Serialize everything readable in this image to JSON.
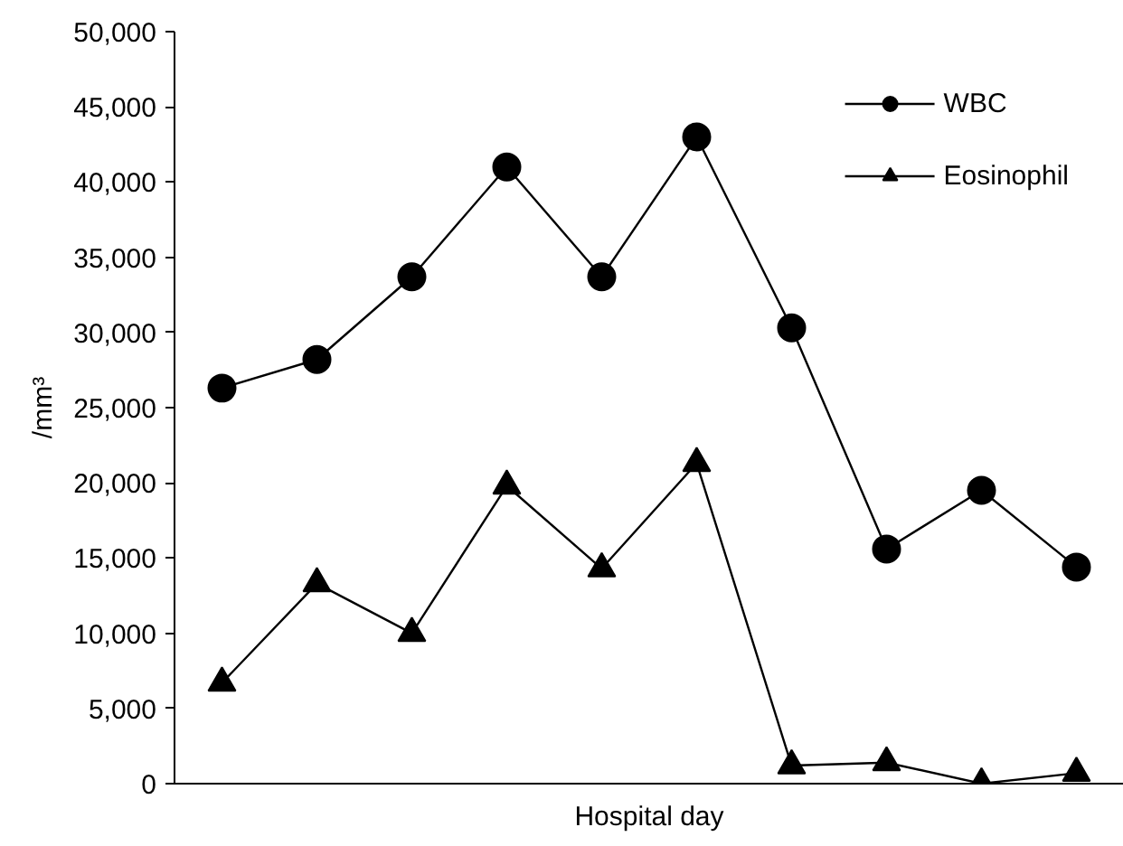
{
  "chart_data": {
    "type": "line",
    "xlabel": "Hospital day",
    "ylabel": "/mm³",
    "categories": [
      null,
      null,
      null,
      null,
      null,
      null,
      null,
      null,
      null,
      null
    ],
    "series": [
      {
        "name": "WBC",
        "color": "#000000",
        "marker": "circle",
        "values": [
          26300,
          28200,
          33700,
          41000,
          33700,
          43000,
          30300,
          15600,
          19500,
          14400
        ]
      },
      {
        "name": "Eosinophil",
        "color": "#000000",
        "marker": "triangle",
        "values": [
          6700,
          13300,
          10000,
          19800,
          14300,
          21300,
          1200,
          1400,
          0,
          700
        ]
      }
    ],
    "ylim": [
      0,
      50000
    ],
    "yticks": [
      {
        "value": 0,
        "label": "0"
      },
      {
        "value": 5000,
        "label": "5,000"
      },
      {
        "value": 10000,
        "label": "10,000"
      },
      {
        "value": 15000,
        "label": "15,000"
      },
      {
        "value": 20000,
        "label": "20,000"
      },
      {
        "value": 25000,
        "label": "25,000"
      },
      {
        "value": 30000,
        "label": "30,000"
      },
      {
        "value": 35000,
        "label": "35,000"
      },
      {
        "value": 40000,
        "label": "40,000"
      },
      {
        "value": 45000,
        "label": "45,000"
      },
      {
        "value": 50000,
        "label": "50,000"
      }
    ],
    "grid": false,
    "legend": "top right",
    "tick_labels": "y",
    "line_style": "solid"
  }
}
